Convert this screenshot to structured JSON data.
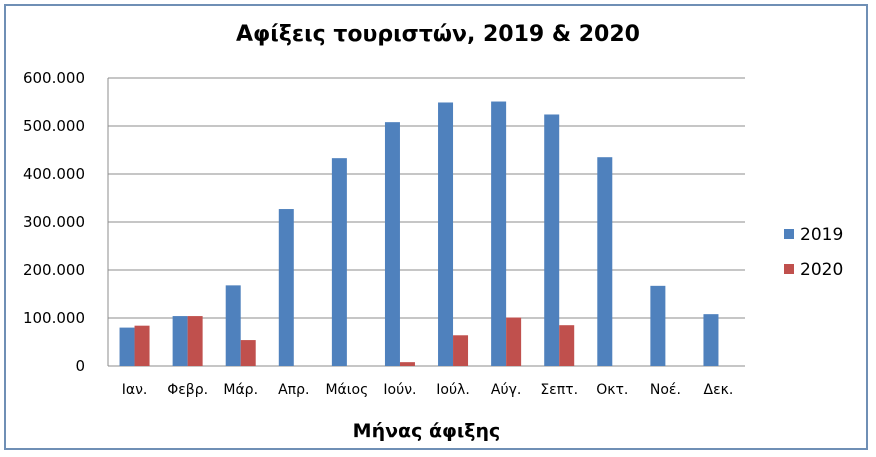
{
  "chart_data": {
    "type": "bar",
    "title": "Αφίξεις τουριστών, 2019 & 2020",
    "xlabel": "Μήνας άφιξης",
    "ylabel": "",
    "categories": [
      "Ιαν.",
      "Φεβρ.",
      "Μάρ.",
      "Απρ.",
      "Μάιος",
      "Ιούν.",
      "Ιούλ.",
      "Αύγ.",
      "Σεπτ.",
      "Οκτ.",
      "Νοέ.",
      "Δεκ."
    ],
    "series": [
      {
        "name": "2019",
        "color": "#4f81bd",
        "values": [
          80000,
          104000,
          168000,
          327000,
          433000,
          508000,
          549000,
          551000,
          524000,
          435000,
          167000,
          108000
        ]
      },
      {
        "name": "2020",
        "color": "#c0504d",
        "values": [
          84000,
          104000,
          54000,
          0,
          0,
          8000,
          64000,
          101000,
          85000,
          0,
          0,
          0
        ]
      }
    ],
    "ylim": [
      0,
      600000
    ],
    "yticks": [
      "0",
      "100.000",
      "200.000",
      "300.000",
      "400.000",
      "500.000",
      "600.000"
    ],
    "grid": true,
    "legend": "right"
  }
}
